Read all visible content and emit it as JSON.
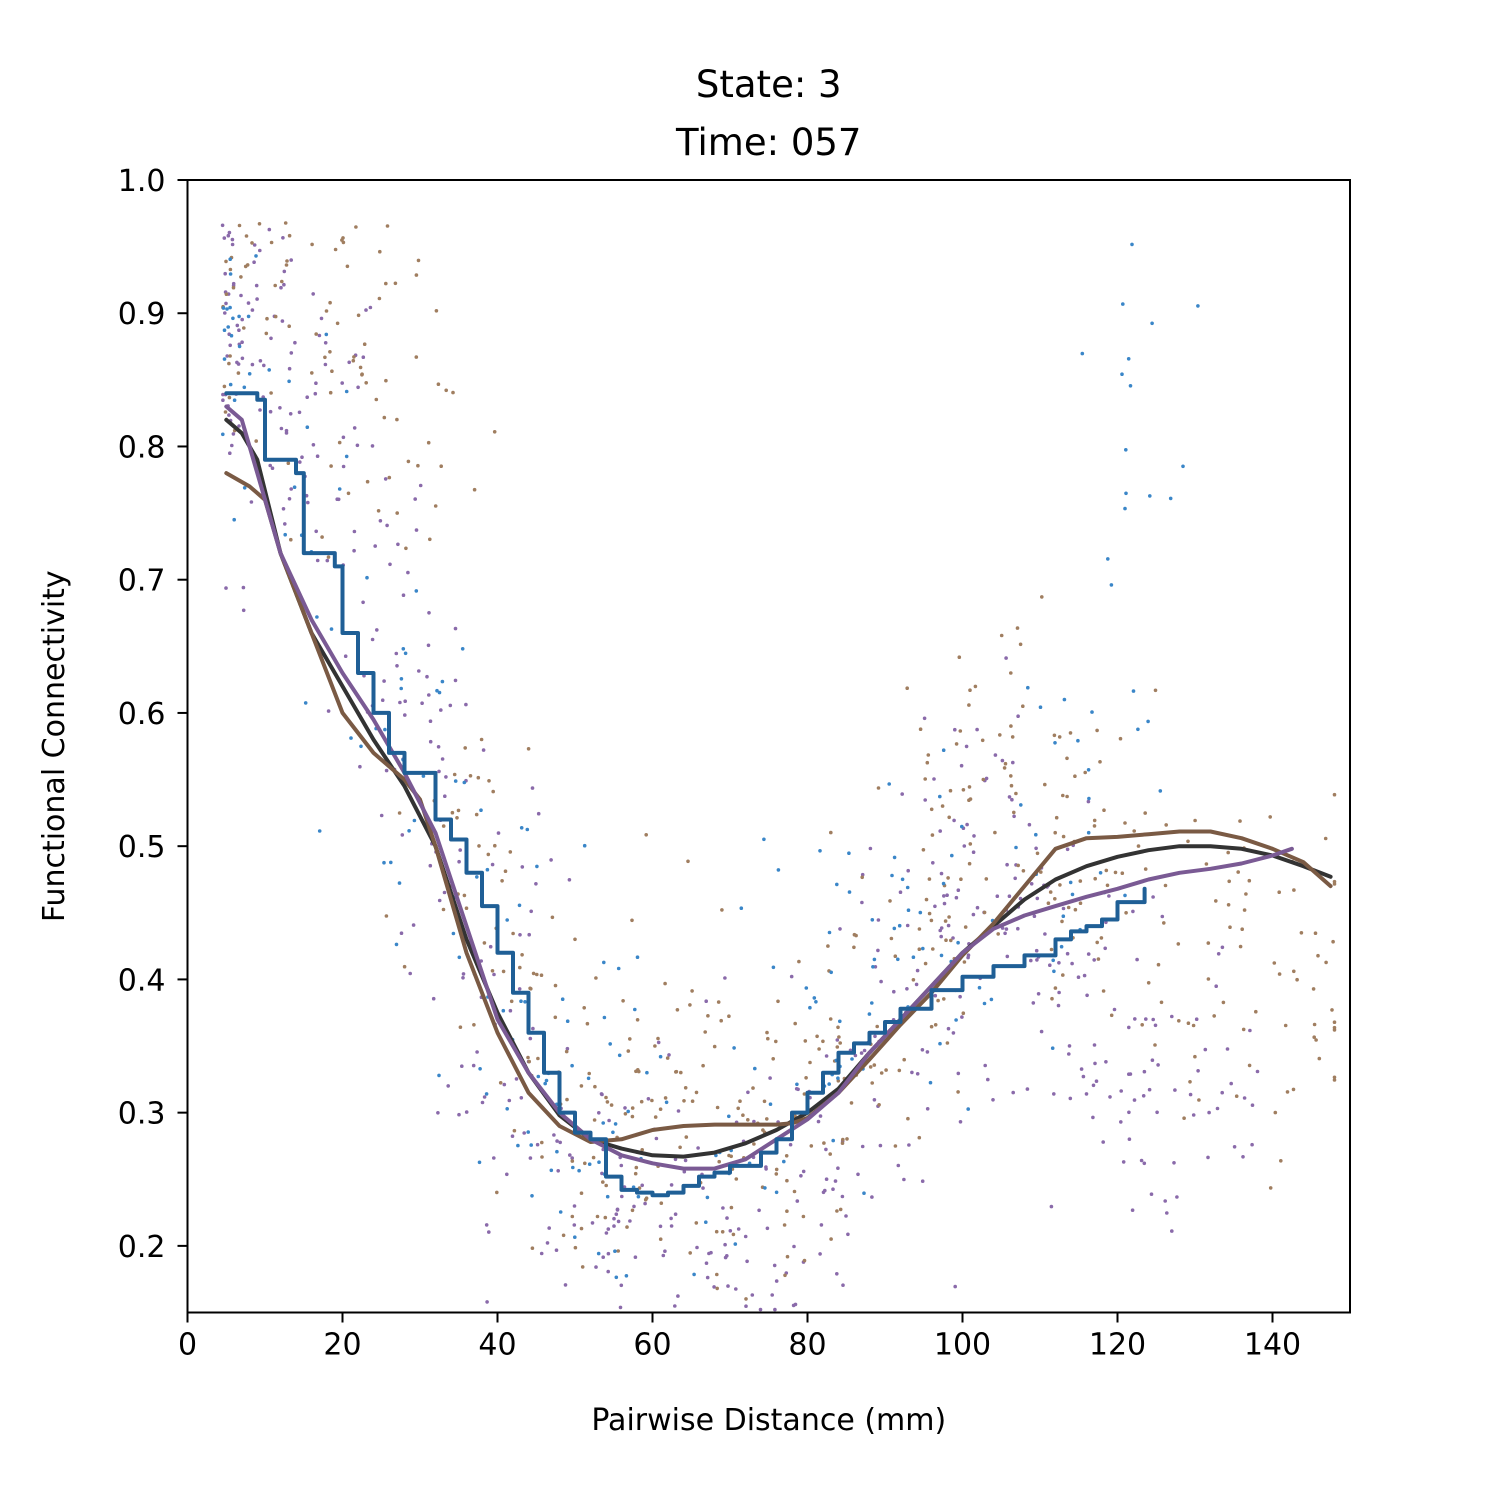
{
  "chart_data": {
    "type": "scatter",
    "title_lines": [
      "State: 3",
      "Time: 057"
    ],
    "xlabel": "Pairwise Distance (mm)",
    "ylabel": "Functional Connectivity",
    "xlim": [
      0,
      150
    ],
    "ylim": [
      0.15,
      1.0
    ],
    "xticks": [
      0,
      20,
      40,
      60,
      80,
      100,
      120,
      140
    ],
    "xtick_labels": [
      "0",
      "20",
      "40",
      "60",
      "80",
      "100",
      "120",
      "140"
    ],
    "yticks": [
      0.2,
      0.3,
      0.4,
      0.5,
      0.6,
      0.7,
      0.8,
      0.9,
      1.0
    ],
    "ytick_labels": [
      "0.2",
      "0.3",
      "0.4",
      "0.5",
      "0.6",
      "0.7",
      "0.8",
      "0.9",
      "1.0"
    ],
    "grid": false,
    "legend": "none",
    "colors": {
      "brown": "#7a5a44",
      "black": "#333333",
      "blue": "#1f5f96",
      "purple": "#7a5a94",
      "brown_points": "#a07e60",
      "blue_points": "#3a86c8",
      "purple_points": "#8a6aaa"
    },
    "series": [
      {
        "color_key": "black",
        "kind": "line",
        "x": [
          5,
          7,
          9,
          12,
          16,
          20,
          24,
          28,
          32,
          36,
          40,
          44,
          48,
          52,
          56,
          60,
          64,
          68,
          72,
          76,
          80,
          84,
          88,
          92,
          96,
          100,
          104,
          108,
          112,
          116,
          120,
          124,
          128,
          132,
          136,
          140,
          144,
          147.5
        ],
        "y": [
          0.82,
          0.81,
          0.79,
          0.72,
          0.66,
          0.62,
          0.58,
          0.545,
          0.5,
          0.43,
          0.375,
          0.33,
          0.298,
          0.28,
          0.273,
          0.268,
          0.267,
          0.27,
          0.277,
          0.287,
          0.3,
          0.318,
          0.345,
          0.37,
          0.395,
          0.42,
          0.44,
          0.46,
          0.475,
          0.485,
          0.492,
          0.497,
          0.5,
          0.5,
          0.498,
          0.493,
          0.485,
          0.477
        ]
      },
      {
        "color_key": "brown",
        "kind": "line",
        "x": [
          5,
          8,
          10,
          12,
          16,
          20,
          24,
          28,
          30,
          32,
          36,
          40,
          44,
          48,
          52,
          56,
          60,
          64,
          68,
          72,
          76,
          78,
          80,
          84,
          88,
          92,
          96,
          100,
          104,
          108,
          112,
          116,
          120,
          124,
          128,
          132,
          136,
          140,
          144,
          147.5
        ],
        "y": [
          0.78,
          0.77,
          0.76,
          0.72,
          0.66,
          0.6,
          0.57,
          0.55,
          0.535,
          0.5,
          0.42,
          0.36,
          0.315,
          0.29,
          0.278,
          0.28,
          0.287,
          0.29,
          0.291,
          0.291,
          0.291,
          0.292,
          0.296,
          0.315,
          0.34,
          0.366,
          0.39,
          0.418,
          0.442,
          0.47,
          0.498,
          0.506,
          0.507,
          0.509,
          0.511,
          0.511,
          0.506,
          0.498,
          0.488,
          0.47
        ]
      },
      {
        "color_key": "purple",
        "kind": "line",
        "x": [
          5,
          7,
          9,
          12,
          16,
          20,
          24,
          28,
          32,
          36,
          40,
          44,
          48,
          52,
          56,
          60,
          64,
          68,
          72,
          76,
          80,
          84,
          88,
          92,
          96,
          100,
          104,
          108,
          112,
          116,
          120,
          124,
          128,
          132,
          136,
          140,
          142.5
        ],
        "y": [
          0.83,
          0.82,
          0.78,
          0.72,
          0.67,
          0.63,
          0.595,
          0.555,
          0.51,
          0.44,
          0.37,
          0.33,
          0.3,
          0.28,
          0.268,
          0.262,
          0.258,
          0.258,
          0.265,
          0.28,
          0.295,
          0.315,
          0.345,
          0.37,
          0.395,
          0.42,
          0.438,
          0.448,
          0.455,
          0.462,
          0.468,
          0.475,
          0.48,
          0.483,
          0.487,
          0.493,
          0.498
        ]
      },
      {
        "color_key": "blue",
        "kind": "step",
        "x": [
          5,
          9,
          10,
          10,
          14,
          15,
          15,
          19,
          20,
          22,
          24,
          26,
          28,
          32,
          34,
          36,
          38,
          40,
          42,
          44,
          46,
          48,
          50,
          52,
          54,
          56,
          58,
          60,
          62,
          64,
          66,
          68,
          70,
          74,
          76,
          78,
          80,
          82,
          84,
          86,
          88,
          90,
          92,
          96,
          100,
          104,
          108,
          112,
          114,
          116,
          118,
          120,
          123.5
        ],
        "y": [
          0.84,
          0.835,
          0.825,
          0.79,
          0.78,
          0.775,
          0.72,
          0.71,
          0.66,
          0.63,
          0.6,
          0.57,
          0.555,
          0.52,
          0.505,
          0.48,
          0.455,
          0.42,
          0.39,
          0.36,
          0.33,
          0.3,
          0.285,
          0.28,
          0.252,
          0.242,
          0.24,
          0.238,
          0.24,
          0.245,
          0.252,
          0.255,
          0.26,
          0.27,
          0.28,
          0.3,
          0.315,
          0.33,
          0.345,
          0.352,
          0.36,
          0.368,
          0.378,
          0.392,
          0.402,
          0.41,
          0.418,
          0.43,
          0.436,
          0.44,
          0.445,
          0.458,
          0.468
        ]
      }
    ],
    "scatter_clouds": [
      {
        "color_key": "purple_points",
        "count": 620,
        "approx_points": [
          [
            5,
            0.93
          ],
          [
            6,
            0.84
          ],
          [
            10,
            0.86
          ],
          [
            15,
            0.86
          ],
          [
            20,
            0.78
          ],
          [
            25,
            0.66
          ],
          [
            30,
            0.6
          ],
          [
            35,
            0.45
          ],
          [
            40,
            0.38
          ],
          [
            45,
            0.28
          ],
          [
            50,
            0.24
          ],
          [
            55,
            0.21
          ],
          [
            60,
            0.2
          ],
          [
            65,
            0.22
          ],
          [
            70,
            0.23
          ],
          [
            75,
            0.22
          ],
          [
            80,
            0.24
          ],
          [
            85,
            0.3
          ],
          [
            90,
            0.34
          ],
          [
            95,
            0.4
          ],
          [
            100,
            0.48
          ],
          [
            105,
            0.5
          ],
          [
            110,
            0.43
          ],
          [
            115,
            0.42
          ],
          [
            120,
            0.35
          ],
          [
            125,
            0.33
          ],
          [
            130,
            0.34
          ]
        ]
      },
      {
        "color_key": "brown_points",
        "count": 560,
        "approx_points": [
          [
            5,
            0.96
          ],
          [
            10,
            0.93
          ],
          [
            15,
            0.9
          ],
          [
            20,
            0.85
          ],
          [
            25,
            0.9
          ],
          [
            30,
            0.78
          ],
          [
            35,
            0.5
          ],
          [
            40,
            0.4
          ],
          [
            45,
            0.35
          ],
          [
            50,
            0.3
          ],
          [
            55,
            0.28
          ],
          [
            60,
            0.3
          ],
          [
            65,
            0.32
          ],
          [
            70,
            0.3
          ],
          [
            75,
            0.28
          ],
          [
            80,
            0.3
          ],
          [
            85,
            0.35
          ],
          [
            90,
            0.4
          ],
          [
            95,
            0.45
          ],
          [
            100,
            0.52
          ],
          [
            105,
            0.6
          ],
          [
            110,
            0.55
          ],
          [
            115,
            0.5
          ],
          [
            120,
            0.45
          ],
          [
            130,
            0.42
          ],
          [
            140,
            0.4
          ],
          [
            147,
            0.4
          ]
        ]
      },
      {
        "color_key": "blue_points",
        "count": 260,
        "approx_points": [
          [
            5,
            0.94
          ],
          [
            10,
            0.8
          ],
          [
            15,
            0.78
          ],
          [
            20,
            0.7
          ],
          [
            25,
            0.62
          ],
          [
            30,
            0.55
          ],
          [
            35,
            0.5
          ],
          [
            40,
            0.42
          ],
          [
            45,
            0.36
          ],
          [
            50,
            0.3
          ],
          [
            55,
            0.26
          ],
          [
            60,
            0.24
          ],
          [
            70,
            0.25
          ],
          [
            80,
            0.35
          ],
          [
            85,
            0.4
          ],
          [
            90,
            0.42
          ],
          [
            95,
            0.45
          ],
          [
            100,
            0.44
          ],
          [
            110,
            0.45
          ],
          [
            118,
            0.55
          ],
          [
            121,
            0.82
          ]
        ]
      }
    ]
  }
}
